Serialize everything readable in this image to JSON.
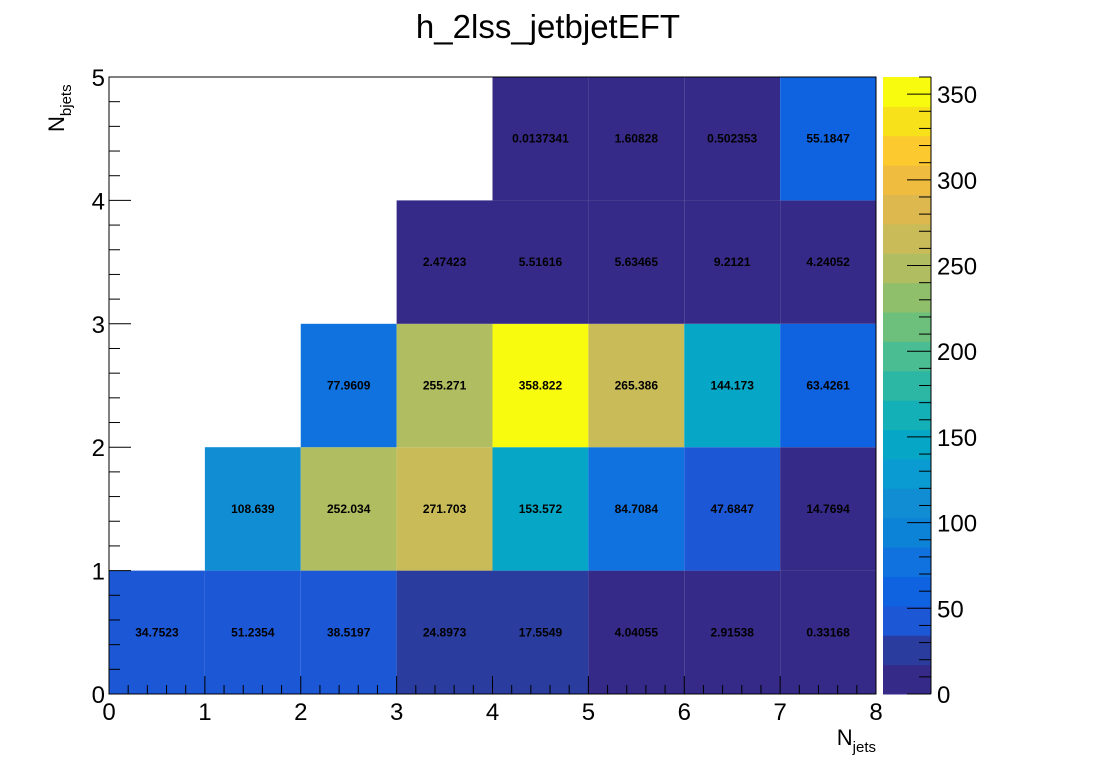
{
  "chart_data": {
    "type": "heatmap",
    "title": "h_2lss_jetbjetEFT",
    "xlabel": {
      "main": "N",
      "sub": "jets"
    },
    "ylabel": {
      "main": "N",
      "sub": "bjets"
    },
    "xlim": [
      0,
      8
    ],
    "ylim": [
      0,
      5
    ],
    "x_ticks": [
      "0",
      "1",
      "2",
      "3",
      "4",
      "5",
      "6",
      "7",
      "8"
    ],
    "y_ticks": [
      "0",
      "1",
      "2",
      "3",
      "4",
      "5"
    ],
    "zlim": [
      0,
      360
    ],
    "z_ticks": [
      "0",
      "50",
      "100",
      "150",
      "200",
      "250",
      "300",
      "350"
    ],
    "cells": [
      {
        "x": 0,
        "y": 0,
        "value": 34.7523,
        "label": "34.7523"
      },
      {
        "x": 1,
        "y": 0,
        "value": 51.2354,
        "label": "51.2354"
      },
      {
        "x": 2,
        "y": 0,
        "value": 38.5197,
        "label": "38.5197"
      },
      {
        "x": 3,
        "y": 0,
        "value": 24.8973,
        "label": "24.8973"
      },
      {
        "x": 4,
        "y": 0,
        "value": 17.5549,
        "label": "17.5549"
      },
      {
        "x": 5,
        "y": 0,
        "value": 4.04055,
        "label": "4.04055"
      },
      {
        "x": 6,
        "y": 0,
        "value": 2.91538,
        "label": "2.91538"
      },
      {
        "x": 7,
        "y": 0,
        "value": 0.33168,
        "label": "0.33168"
      },
      {
        "x": 1,
        "y": 1,
        "value": 108.639,
        "label": "108.639"
      },
      {
        "x": 2,
        "y": 1,
        "value": 252.034,
        "label": "252.034"
      },
      {
        "x": 3,
        "y": 1,
        "value": 271.703,
        "label": "271.703"
      },
      {
        "x": 4,
        "y": 1,
        "value": 153.572,
        "label": "153.572"
      },
      {
        "x": 5,
        "y": 1,
        "value": 84.7084,
        "label": "84.7084"
      },
      {
        "x": 6,
        "y": 1,
        "value": 47.6847,
        "label": "47.6847"
      },
      {
        "x": 7,
        "y": 1,
        "value": 14.7694,
        "label": "14.7694"
      },
      {
        "x": 2,
        "y": 2,
        "value": 77.9609,
        "label": "77.9609"
      },
      {
        "x": 3,
        "y": 2,
        "value": 255.271,
        "label": "255.271"
      },
      {
        "x": 4,
        "y": 2,
        "value": 358.822,
        "label": "358.822"
      },
      {
        "x": 5,
        "y": 2,
        "value": 265.386,
        "label": "265.386"
      },
      {
        "x": 6,
        "y": 2,
        "value": 144.173,
        "label": "144.173"
      },
      {
        "x": 7,
        "y": 2,
        "value": 63.4261,
        "label": "63.4261"
      },
      {
        "x": 3,
        "y": 3,
        "value": 2.47423,
        "label": "2.47423"
      },
      {
        "x": 4,
        "y": 3,
        "value": 5.51616,
        "label": "5.51616"
      },
      {
        "x": 5,
        "y": 3,
        "value": 5.63465,
        "label": "5.63465"
      },
      {
        "x": 6,
        "y": 3,
        "value": 9.2121,
        "label": "9.2121"
      },
      {
        "x": 7,
        "y": 3,
        "value": 4.24052,
        "label": "4.24052"
      },
      {
        "x": 4,
        "y": 4,
        "value": 0.0137341,
        "label": "0.0137341"
      },
      {
        "x": 5,
        "y": 4,
        "value": 1.60828,
        "label": "1.60828"
      },
      {
        "x": 6,
        "y": 4,
        "value": 0.502353,
        "label": "0.502353"
      },
      {
        "x": 7,
        "y": 4,
        "value": 55.1847,
        "label": "55.1847"
      }
    ],
    "palette": [
      "#352a87",
      "#2a3d9e",
      "#1c57d6",
      "#0f63e0",
      "#0f72de",
      "#0d83d8",
      "#108dd3",
      "#0a9bd2",
      "#06a7c6",
      "#13b0b8",
      "#2cb7a5",
      "#4abd92",
      "#6cc07c",
      "#90bf6c",
      "#b0bd60",
      "#c8bb58",
      "#ddb84e",
      "#efbc40",
      "#fcca2e",
      "#f6e11b",
      "#f9fb0e"
    ],
    "grid": false,
    "legend": "colorbar-right"
  }
}
